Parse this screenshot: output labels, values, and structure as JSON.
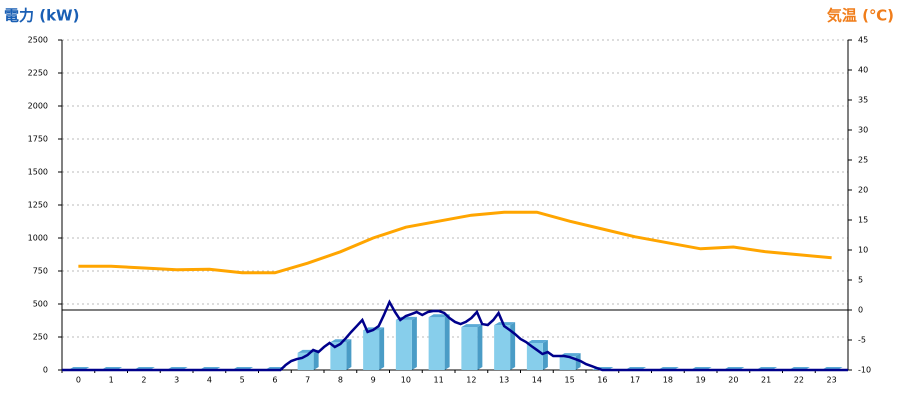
{
  "chart_data": {
    "type": "bar-line",
    "y_title": "電力 (kW)",
    "y2_title": "気温 (℃)",
    "categories": [
      "0",
      "1",
      "2",
      "3",
      "4",
      "5",
      "6",
      "7",
      "8",
      "9",
      "10",
      "11",
      "12",
      "13",
      "14",
      "15",
      "16",
      "17",
      "18",
      "19",
      "20",
      "21",
      "22",
      "23"
    ],
    "bar_series": {
      "color": "#87ceeb",
      "values": [
        0,
        0,
        0,
        0,
        0,
        0,
        0,
        130,
        210,
        300,
        380,
        400,
        325,
        340,
        205,
        105,
        0,
        0,
        0,
        0,
        0,
        0,
        0,
        0
      ]
    },
    "line_series": {
      "color": "#00008b",
      "x": [
        -0.5,
        6,
        6.17,
        6.33,
        6.5,
        6.67,
        6.83,
        7,
        7.17,
        7.33,
        7.5,
        7.67,
        7.83,
        8,
        8.17,
        8.33,
        8.5,
        8.67,
        8.83,
        9,
        9.17,
        9.33,
        9.5,
        9.67,
        9.83,
        10,
        10.17,
        10.33,
        10.5,
        10.67,
        10.83,
        11,
        11.17,
        11.33,
        11.5,
        11.67,
        11.83,
        12,
        12.17,
        12.33,
        12.5,
        12.67,
        12.83,
        13,
        13.17,
        13.33,
        13.5,
        13.67,
        13.83,
        14,
        14.17,
        14.33,
        14.5,
        14.67,
        14.83,
        15,
        15.17,
        15.33,
        15.5,
        15.67,
        15.83,
        16,
        23.5
      ],
      "values": [
        0,
        0,
        0,
        38,
        68,
        83,
        91,
        114,
        152,
        136,
        174,
        205,
        174,
        197,
        242,
        288,
        333,
        379,
        288,
        303,
        333,
        417,
        515,
        439,
        379,
        409,
        424,
        439,
        417,
        439,
        447,
        447,
        432,
        394,
        364,
        348,
        364,
        394,
        439,
        348,
        341,
        379,
        432,
        333,
        303,
        273,
        235,
        212,
        182,
        152,
        121,
        136,
        106,
        106,
        106,
        98,
        83,
        68,
        45,
        30,
        15,
        0,
        0
      ]
    },
    "temp_series": {
      "color": "#ffa500",
      "axis": "y2",
      "values": [
        7.3,
        7.3,
        7.0,
        6.7,
        6.8,
        6.2,
        6.2,
        7.8,
        9.7,
        12,
        13.8,
        14.8,
        15.8,
        16.3,
        16.3,
        14.8,
        13.5,
        12.2,
        11.2,
        10.2,
        10.5,
        9.7,
        9.2,
        8.7
      ]
    },
    "ylim": [
      0,
      2500
    ],
    "yticks": [
      0,
      250,
      500,
      750,
      1000,
      1250,
      1500,
      1750,
      2000,
      2250,
      2500
    ],
    "y2lim": [
      -10,
      45
    ],
    "y2ticks": [
      -10,
      -5,
      0,
      5,
      10,
      15,
      20,
      25,
      30,
      35,
      40,
      45
    ],
    "grid": true
  }
}
